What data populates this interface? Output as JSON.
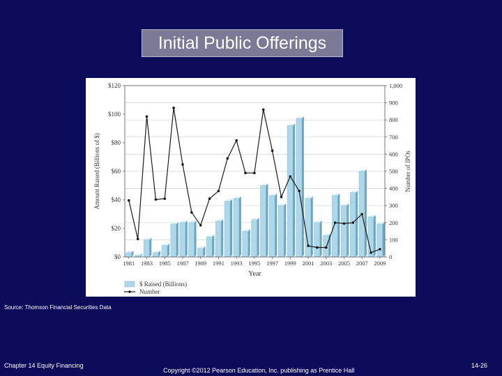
{
  "slide": {
    "title": "Initial Public Offerings",
    "source": "Source: Thomson Financial Securities Data",
    "footer_left": "Chapter 14 Equity Financing",
    "footer_center": "Copyright ©2012 Pearson Education, Inc. publishing as Prentice Hall",
    "footer_right": "14-26"
  },
  "colors": {
    "background": "#0b0b5a",
    "bar_face": "#aed8ea",
    "bar_side": "#6aa6c2",
    "line": "#1a1a1a"
  },
  "chart_data": {
    "type": "bar",
    "xlabel": "Year",
    "ylabel": "Amount Raised (Billions of $)",
    "y2label": "Number of IPOs",
    "ylim": [
      0,
      120
    ],
    "y2lim": [
      0,
      1000
    ],
    "yticks": [
      "$0",
      "$20",
      "$40",
      "$60",
      "$80",
      "$100",
      "$120"
    ],
    "y2ticks": [
      "0",
      "100",
      "200",
      "300",
      "400",
      "500",
      "600",
      "700",
      "800",
      "900",
      "1,000"
    ],
    "categories": [
      1981,
      1982,
      1983,
      1984,
      1985,
      1986,
      1987,
      1988,
      1989,
      1990,
      1991,
      1992,
      1993,
      1994,
      1995,
      1996,
      1997,
      1998,
      1999,
      2000,
      2001,
      2002,
      2003,
      2004,
      2005,
      2006,
      2007,
      2008,
      2009
    ],
    "xtick_labels": [
      "1981",
      "1983",
      "1985",
      "1987",
      "1989",
      "1991",
      "1993",
      "1995",
      "1997",
      "1999",
      "2001",
      "2003",
      "2005",
      "2007",
      "2009"
    ],
    "grid": true,
    "legend_position": "bottom-left",
    "series": [
      {
        "name": "$ Raised (Billions)",
        "type": "bar",
        "axis": "left",
        "values": [
          3,
          1,
          12,
          3,
          8,
          23,
          24,
          24,
          6,
          14,
          25,
          39,
          41,
          18,
          26,
          50,
          43,
          36,
          92,
          97,
          41,
          24,
          15,
          43,
          36,
          45,
          60,
          28,
          23
        ]
      },
      {
        "name": "Number",
        "type": "line",
        "axis": "right",
        "values": [
          330,
          105,
          820,
          335,
          340,
          870,
          540,
          260,
          185,
          340,
          385,
          575,
          680,
          490,
          490,
          860,
          620,
          350,
          470,
          385,
          65,
          55,
          55,
          200,
          195,
          200,
          250,
          25,
          45
        ]
      }
    ]
  }
}
